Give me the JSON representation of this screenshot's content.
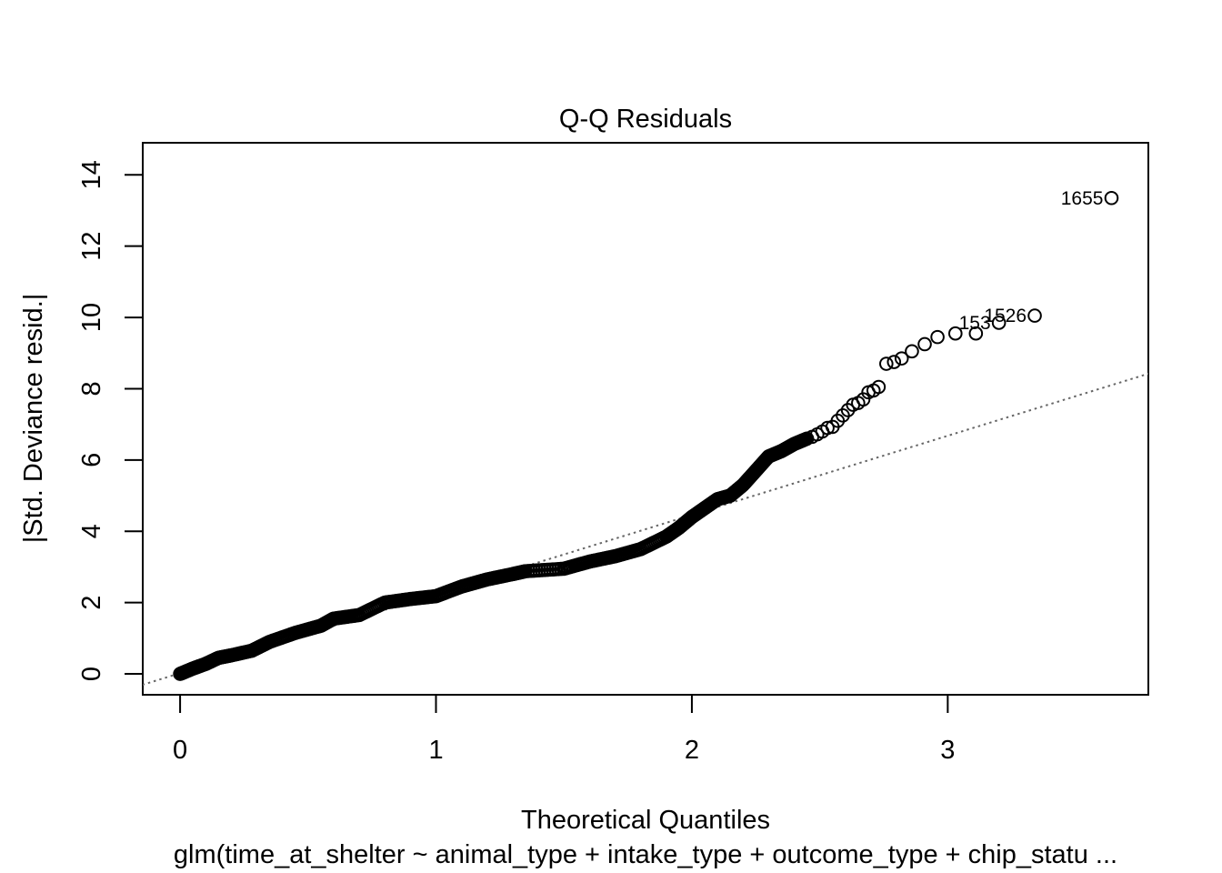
{
  "chart_data": {
    "type": "scatter",
    "title": "Q-Q Residuals",
    "xlabel": "Theoretical Quantiles",
    "ylabel": "|Std. Deviance resid.|",
    "subtitle": "glm(time_at_shelter ~ animal_type + intake_type + outcome_type + chip_statu ...",
    "xlim": [
      -0.146,
      3.784
    ],
    "ylim": [
      -0.586,
      14.9
    ],
    "x_ticks": [
      "0",
      "1",
      "2",
      "3"
    ],
    "y_ticks": [
      "0",
      "2",
      "4",
      "6",
      "8",
      "10",
      "12",
      "14"
    ],
    "reference_line": {
      "intercept": 0.02,
      "slope": 2.22,
      "style": "dotted"
    },
    "grid": false,
    "legend": "none",
    "marker": "open-circle",
    "point_color": "#000000",
    "line_color": "#666666",
    "curve": [
      [
        0.0,
        0.0
      ],
      [
        0.05,
        0.15
      ],
      [
        0.1,
        0.28
      ],
      [
        0.15,
        0.45
      ],
      [
        0.2,
        0.52
      ],
      [
        0.28,
        0.65
      ],
      [
        0.35,
        0.9
      ],
      [
        0.45,
        1.15
      ],
      [
        0.55,
        1.35
      ],
      [
        0.6,
        1.55
      ],
      [
        0.7,
        1.65
      ],
      [
        0.8,
        2.0
      ],
      [
        0.9,
        2.1
      ],
      [
        1.0,
        2.18
      ],
      [
        1.1,
        2.45
      ],
      [
        1.2,
        2.65
      ],
      [
        1.3,
        2.8
      ],
      [
        1.35,
        2.88
      ],
      [
        1.5,
        2.95
      ],
      [
        1.6,
        3.15
      ],
      [
        1.7,
        3.3
      ],
      [
        1.8,
        3.5
      ],
      [
        1.9,
        3.85
      ],
      [
        1.95,
        4.1
      ],
      [
        2.0,
        4.4
      ],
      [
        2.05,
        4.65
      ],
      [
        2.1,
        4.9
      ],
      [
        2.15,
        5.0
      ],
      [
        2.2,
        5.3
      ],
      [
        2.25,
        5.7
      ],
      [
        2.3,
        6.1
      ],
      [
        2.35,
        6.25
      ],
      [
        2.4,
        6.45
      ],
      [
        2.45,
        6.6
      ]
    ],
    "tail_points": [
      [
        2.47,
        6.65
      ],
      [
        2.49,
        6.72
      ],
      [
        2.51,
        6.8
      ],
      [
        2.53,
        6.9
      ],
      [
        2.55,
        6.93
      ],
      [
        2.57,
        7.1
      ],
      [
        2.59,
        7.25
      ],
      [
        2.61,
        7.4
      ],
      [
        2.63,
        7.55
      ],
      [
        2.65,
        7.6
      ],
      [
        2.67,
        7.7
      ],
      [
        2.69,
        7.9
      ],
      [
        2.71,
        7.95
      ],
      [
        2.73,
        8.05
      ],
      [
        2.76,
        8.7
      ],
      [
        2.79,
        8.75
      ],
      [
        2.82,
        8.85
      ],
      [
        2.86,
        9.05
      ],
      [
        2.91,
        9.25
      ],
      [
        2.96,
        9.45
      ],
      [
        3.03,
        9.55
      ],
      [
        3.11,
        9.55
      ],
      [
        3.2,
        9.85
      ],
      [
        3.34,
        10.05
      ],
      [
        3.64,
        13.35
      ]
    ],
    "labeled_points": [
      {
        "x": 3.64,
        "y": 13.35,
        "label": "1655"
      },
      {
        "x": 3.34,
        "y": 10.05,
        "label": "1526"
      },
      {
        "x": 3.2,
        "y": 9.85,
        "label": "153"
      }
    ]
  }
}
